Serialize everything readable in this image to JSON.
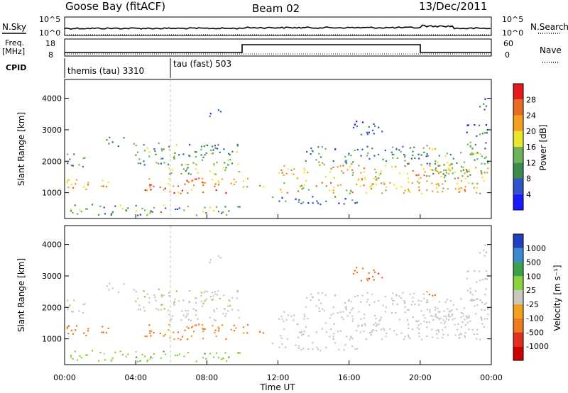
{
  "header": {
    "station": "Goose Bay (fitACF)",
    "beam": "Beam 02",
    "date": "13/Dec/2011"
  },
  "panels_text": {
    "nsky_label": "N.Sky",
    "nsearch_label": "N.Search",
    "freq_label": "Freq.",
    "freq_unit": "[MHz]",
    "nave_label": "Nave",
    "cpid_label": "CPID",
    "nsky_top_tick": "10^5",
    "nsky_bottom_tick": "10^0",
    "freq_ticks": [
      "18",
      "8"
    ],
    "nave_ticks": [
      "60",
      "0"
    ],
    "cpid_segments": [
      {
        "label": "themis (tau) 3310",
        "start_hour": 0
      },
      {
        "label": "tau (fast) 503",
        "start_hour": 6
      }
    ]
  },
  "chart_data": {
    "type": "heatmap",
    "xlabel": "Time UT",
    "xlim": [
      0,
      24
    ],
    "x_ticks": [
      "00:00",
      "04:00",
      "08:00",
      "12:00",
      "16:00",
      "20:00",
      "00:00"
    ],
    "ylabel": "Slant Range [km]",
    "ylim": [
      180,
      4600
    ],
    "y_ticks": [
      "1000",
      "2000",
      "3000",
      "4000"
    ],
    "power_colorbar": {
      "label": "Power [dB]",
      "ticks": [
        "4",
        "8",
        "12",
        "16",
        "20",
        "24",
        "28"
      ],
      "colors": [
        "#1a1aff",
        "#2f55c8",
        "#3d8a4e",
        "#6db25a",
        "#e8e62a",
        "#f2a020",
        "#e96b22",
        "#e51a1a"
      ]
    },
    "velocity_colorbar": {
      "label": "Velocity [m s⁻¹]",
      "ticks": [
        "1000",
        "500",
        "100",
        "25",
        "-25",
        "-100",
        "-500",
        "-1000"
      ],
      "colors": [
        "#2040c0",
        "#3a8ad0",
        "#3aa04a",
        "#8ad040",
        "#c8c8c0",
        "#f2a020",
        "#ee7a20",
        "#e03020",
        "#d00000"
      ]
    },
    "scatter_regions": [
      {
        "t0": 0.0,
        "t1": 9.9,
        "r0": 300,
        "r1": 650,
        "power": 12,
        "velocity": 60
      },
      {
        "t0": 0.1,
        "t1": 2.6,
        "r0": 1050,
        "r1": 1450,
        "power": 22,
        "velocity": -200
      },
      {
        "t0": 0.1,
        "t1": 1.2,
        "r0": 1800,
        "r1": 2300,
        "power": 10,
        "velocity": 10
      },
      {
        "t0": 2.2,
        "t1": 3.3,
        "r0": 2500,
        "r1": 2800,
        "power": 8,
        "velocity": 10
      },
      {
        "t0": 3.7,
        "t1": 9.9,
        "r0": 1900,
        "r1": 2600,
        "power": 12,
        "velocity": 10
      },
      {
        "t0": 4.3,
        "t1": 9.8,
        "r0": 1000,
        "r1": 1500,
        "power": 24,
        "velocity": -100
      },
      {
        "t0": 5.5,
        "t1": 9.9,
        "r0": 1600,
        "r1": 1950,
        "power": 14,
        "velocity": 5
      },
      {
        "t0": 8.0,
        "t1": 8.8,
        "r0": 3400,
        "r1": 3700,
        "power": 8,
        "velocity": 0
      },
      {
        "t0": 10.0,
        "t1": 11.2,
        "r0": 1200,
        "r1": 1500,
        "power": 18,
        "velocity": -150
      },
      {
        "t0": 11.5,
        "t1": 16.5,
        "r0": 650,
        "r1": 900,
        "power": 8,
        "velocity": 0
      },
      {
        "t0": 12.0,
        "t1": 23.8,
        "r0": 1000,
        "r1": 1900,
        "power": 20,
        "velocity": -5
      },
      {
        "t0": 13.5,
        "t1": 20.5,
        "r0": 1900,
        "r1": 2500,
        "power": 10,
        "velocity": 0
      },
      {
        "t0": 20.5,
        "t1": 23.9,
        "r0": 1300,
        "r1": 2300,
        "power": 14,
        "velocity": 5
      },
      {
        "t0": 22.4,
        "t1": 23.8,
        "r0": 2400,
        "r1": 3200,
        "power": 8,
        "velocity": 0
      },
      {
        "t0": 23.0,
        "t1": 23.7,
        "r0": 3500,
        "r1": 4000,
        "power": 8,
        "velocity": 0
      },
      {
        "t0": 16.2,
        "t1": 18.0,
        "r0": 2800,
        "r1": 3300,
        "power": 6,
        "velocity": -300
      },
      {
        "t0": 20.3,
        "t1": 21.0,
        "r0": 2300,
        "r1": 2600,
        "power": 20,
        "velocity": -120
      }
    ]
  }
}
